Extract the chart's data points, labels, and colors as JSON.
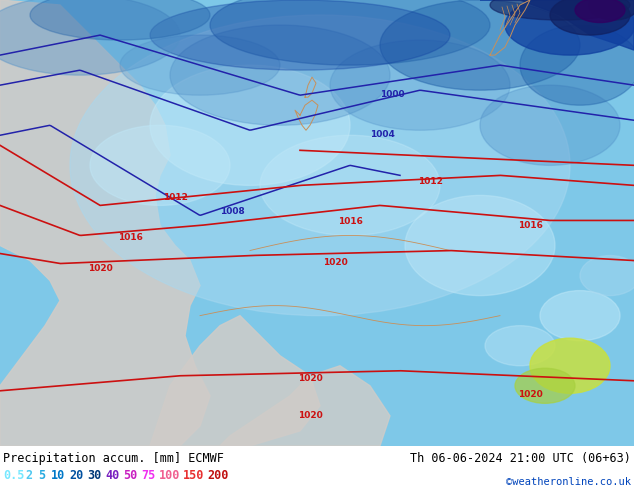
{
  "title_left": "Precipitation accum. [mm] ECMWF",
  "title_right": "Th 06-06-2024 21:00 UTC (06+63)",
  "credit": "©weatheronline.co.uk",
  "legend_values": [
    "0.5",
    "2",
    "5",
    "10",
    "20",
    "30",
    "40",
    "50",
    "75",
    "100",
    "150",
    "200"
  ],
  "legend_colors": [
    "#78e8ff",
    "#50c8f0",
    "#28aae0",
    "#0078c8",
    "#0050a0",
    "#003878",
    "#7820c0",
    "#c820c0",
    "#f030f0",
    "#f06090",
    "#e83030",
    "#c01010"
  ],
  "fig_width": 6.34,
  "fig_height": 4.9,
  "dpi": 100,
  "ocean_blue": "#7ec8e8",
  "light_blue": "#a8d8f0",
  "medium_blue": "#5090c8",
  "darker_blue": "#2060a8",
  "deep_blue": "#1040a0",
  "very_deep": "#102060",
  "purple_dark": "#300060",
  "gray_land": "#d0ccc8",
  "light_gray": "#e8e4e0",
  "pale_cyan": "#c0e8f8",
  "yellow_green": "#c8e040",
  "isobar_blue": "#2222aa",
  "isobar_red": "#cc1010",
  "coast_color": "#c8905a"
}
